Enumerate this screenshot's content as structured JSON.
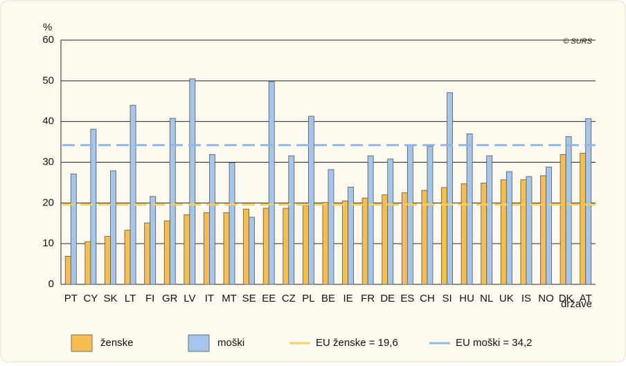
{
  "chart_data": {
    "type": "bar",
    "y_label": "%",
    "x_label": "države",
    "source": "© SURS",
    "categories": [
      "PT",
      "CY",
      "SK",
      "LT",
      "FI",
      "GR",
      "LV",
      "IT",
      "MT",
      "SE",
      "EE",
      "CZ",
      "PL",
      "BE",
      "IE",
      "FR",
      "DE",
      "ES",
      "CH",
      "SI",
      "HU",
      "NL",
      "UK",
      "IS",
      "NO",
      "DK",
      "AT"
    ],
    "highlight_categories": [
      "SI"
    ],
    "highlight_color": "#2e4fa3",
    "series": [
      {
        "name": "ženske",
        "color": "#f7bd4f",
        "values": [
          6.9,
          10.5,
          11.8,
          13.3,
          15.1,
          15.6,
          17.1,
          17.6,
          17.6,
          18.5,
          18.7,
          18.7,
          19.4,
          20.1,
          20.5,
          21.2,
          22.0,
          22.5,
          23.1,
          23.8,
          24.7,
          24.9,
          25.7,
          25.7,
          26.7,
          31.9,
          32.2
        ]
      },
      {
        "name": "moški",
        "color": "#a3c6ea",
        "values": [
          27.1,
          38.1,
          27.9,
          44.0,
          21.6,
          40.8,
          50.5,
          31.9,
          29.9,
          16.5,
          49.8,
          31.6,
          41.3,
          28.2,
          23.9,
          31.6,
          30.8,
          34.2,
          33.9,
          47.1,
          37.0,
          31.6,
          27.7,
          26.5,
          28.8,
          36.3,
          40.7
        ]
      }
    ],
    "reference_lines": [
      {
        "label": "EU ženske = 19,6",
        "value": 19.6,
        "color": "#f8cf5a"
      },
      {
        "label": "EU moški = 34,2",
        "value": 34.2,
        "color": "#8fb6e4"
      }
    ],
    "ylim": [
      0,
      60
    ],
    "yticks": [
      0,
      10,
      20,
      30,
      40,
      50,
      60
    ],
    "grid": true
  }
}
